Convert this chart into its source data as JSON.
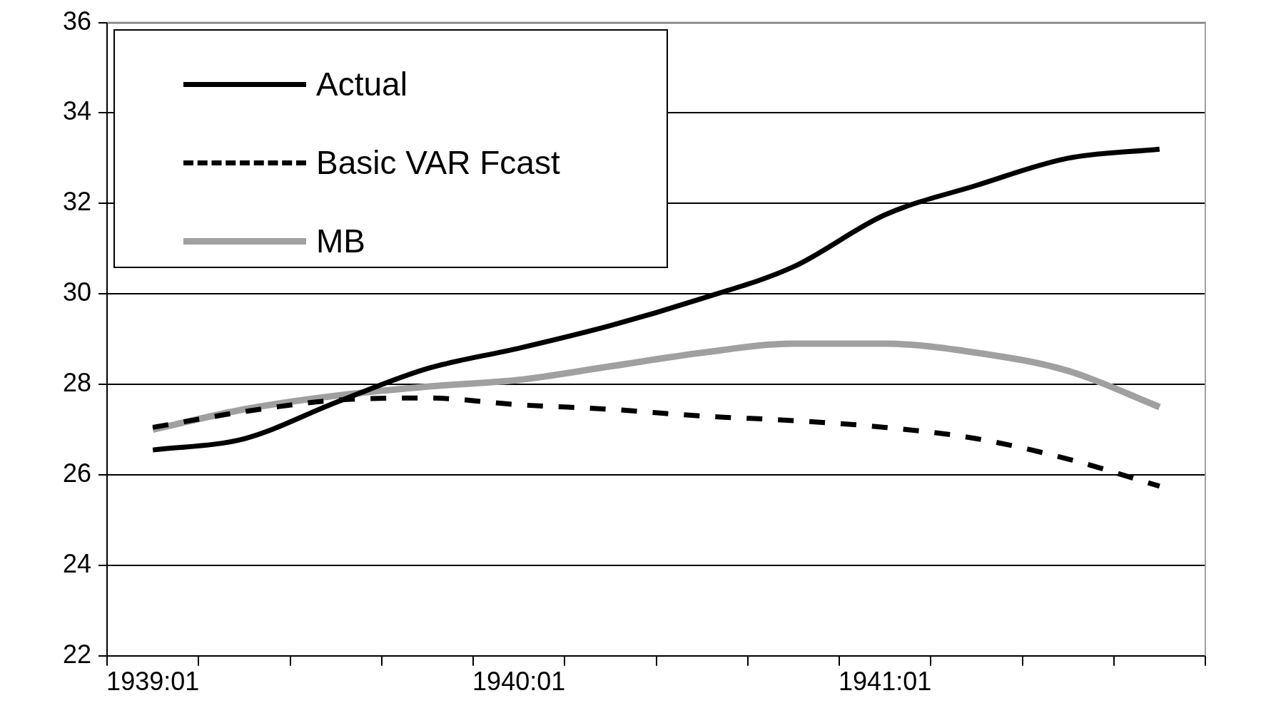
{
  "chart_data": {
    "type": "line",
    "categories": [
      "1939:01",
      null,
      null,
      null,
      "1940:01",
      null,
      null,
      null,
      "1941:01",
      null,
      null,
      null
    ],
    "series": [
      {
        "name": "Actual",
        "color": "#000000",
        "line_style": "solid",
        "values": [
          26.55,
          26.8,
          27.6,
          28.35,
          28.8,
          29.3,
          29.9,
          30.6,
          31.75,
          32.4,
          33.0,
          33.2
        ]
      },
      {
        "name": "Basic VAR Fcast",
        "color": "#000000",
        "line_style": "dashed",
        "values": [
          27.05,
          27.4,
          27.65,
          27.7,
          27.55,
          27.45,
          27.3,
          27.2,
          27.05,
          26.8,
          26.35,
          25.75
        ]
      },
      {
        "name": "MB",
        "color": "#a0a0a0",
        "line_style": "solid",
        "values": [
          27.0,
          27.45,
          27.75,
          27.95,
          28.1,
          28.4,
          28.7,
          28.9,
          28.9,
          28.7,
          28.3,
          27.5
        ]
      }
    ],
    "ylim": [
      22,
      36
    ],
    "yticks": [
      22,
      24,
      26,
      28,
      30,
      32,
      34,
      36
    ],
    "grid": "y",
    "legend": "top left",
    "marker": "none"
  }
}
